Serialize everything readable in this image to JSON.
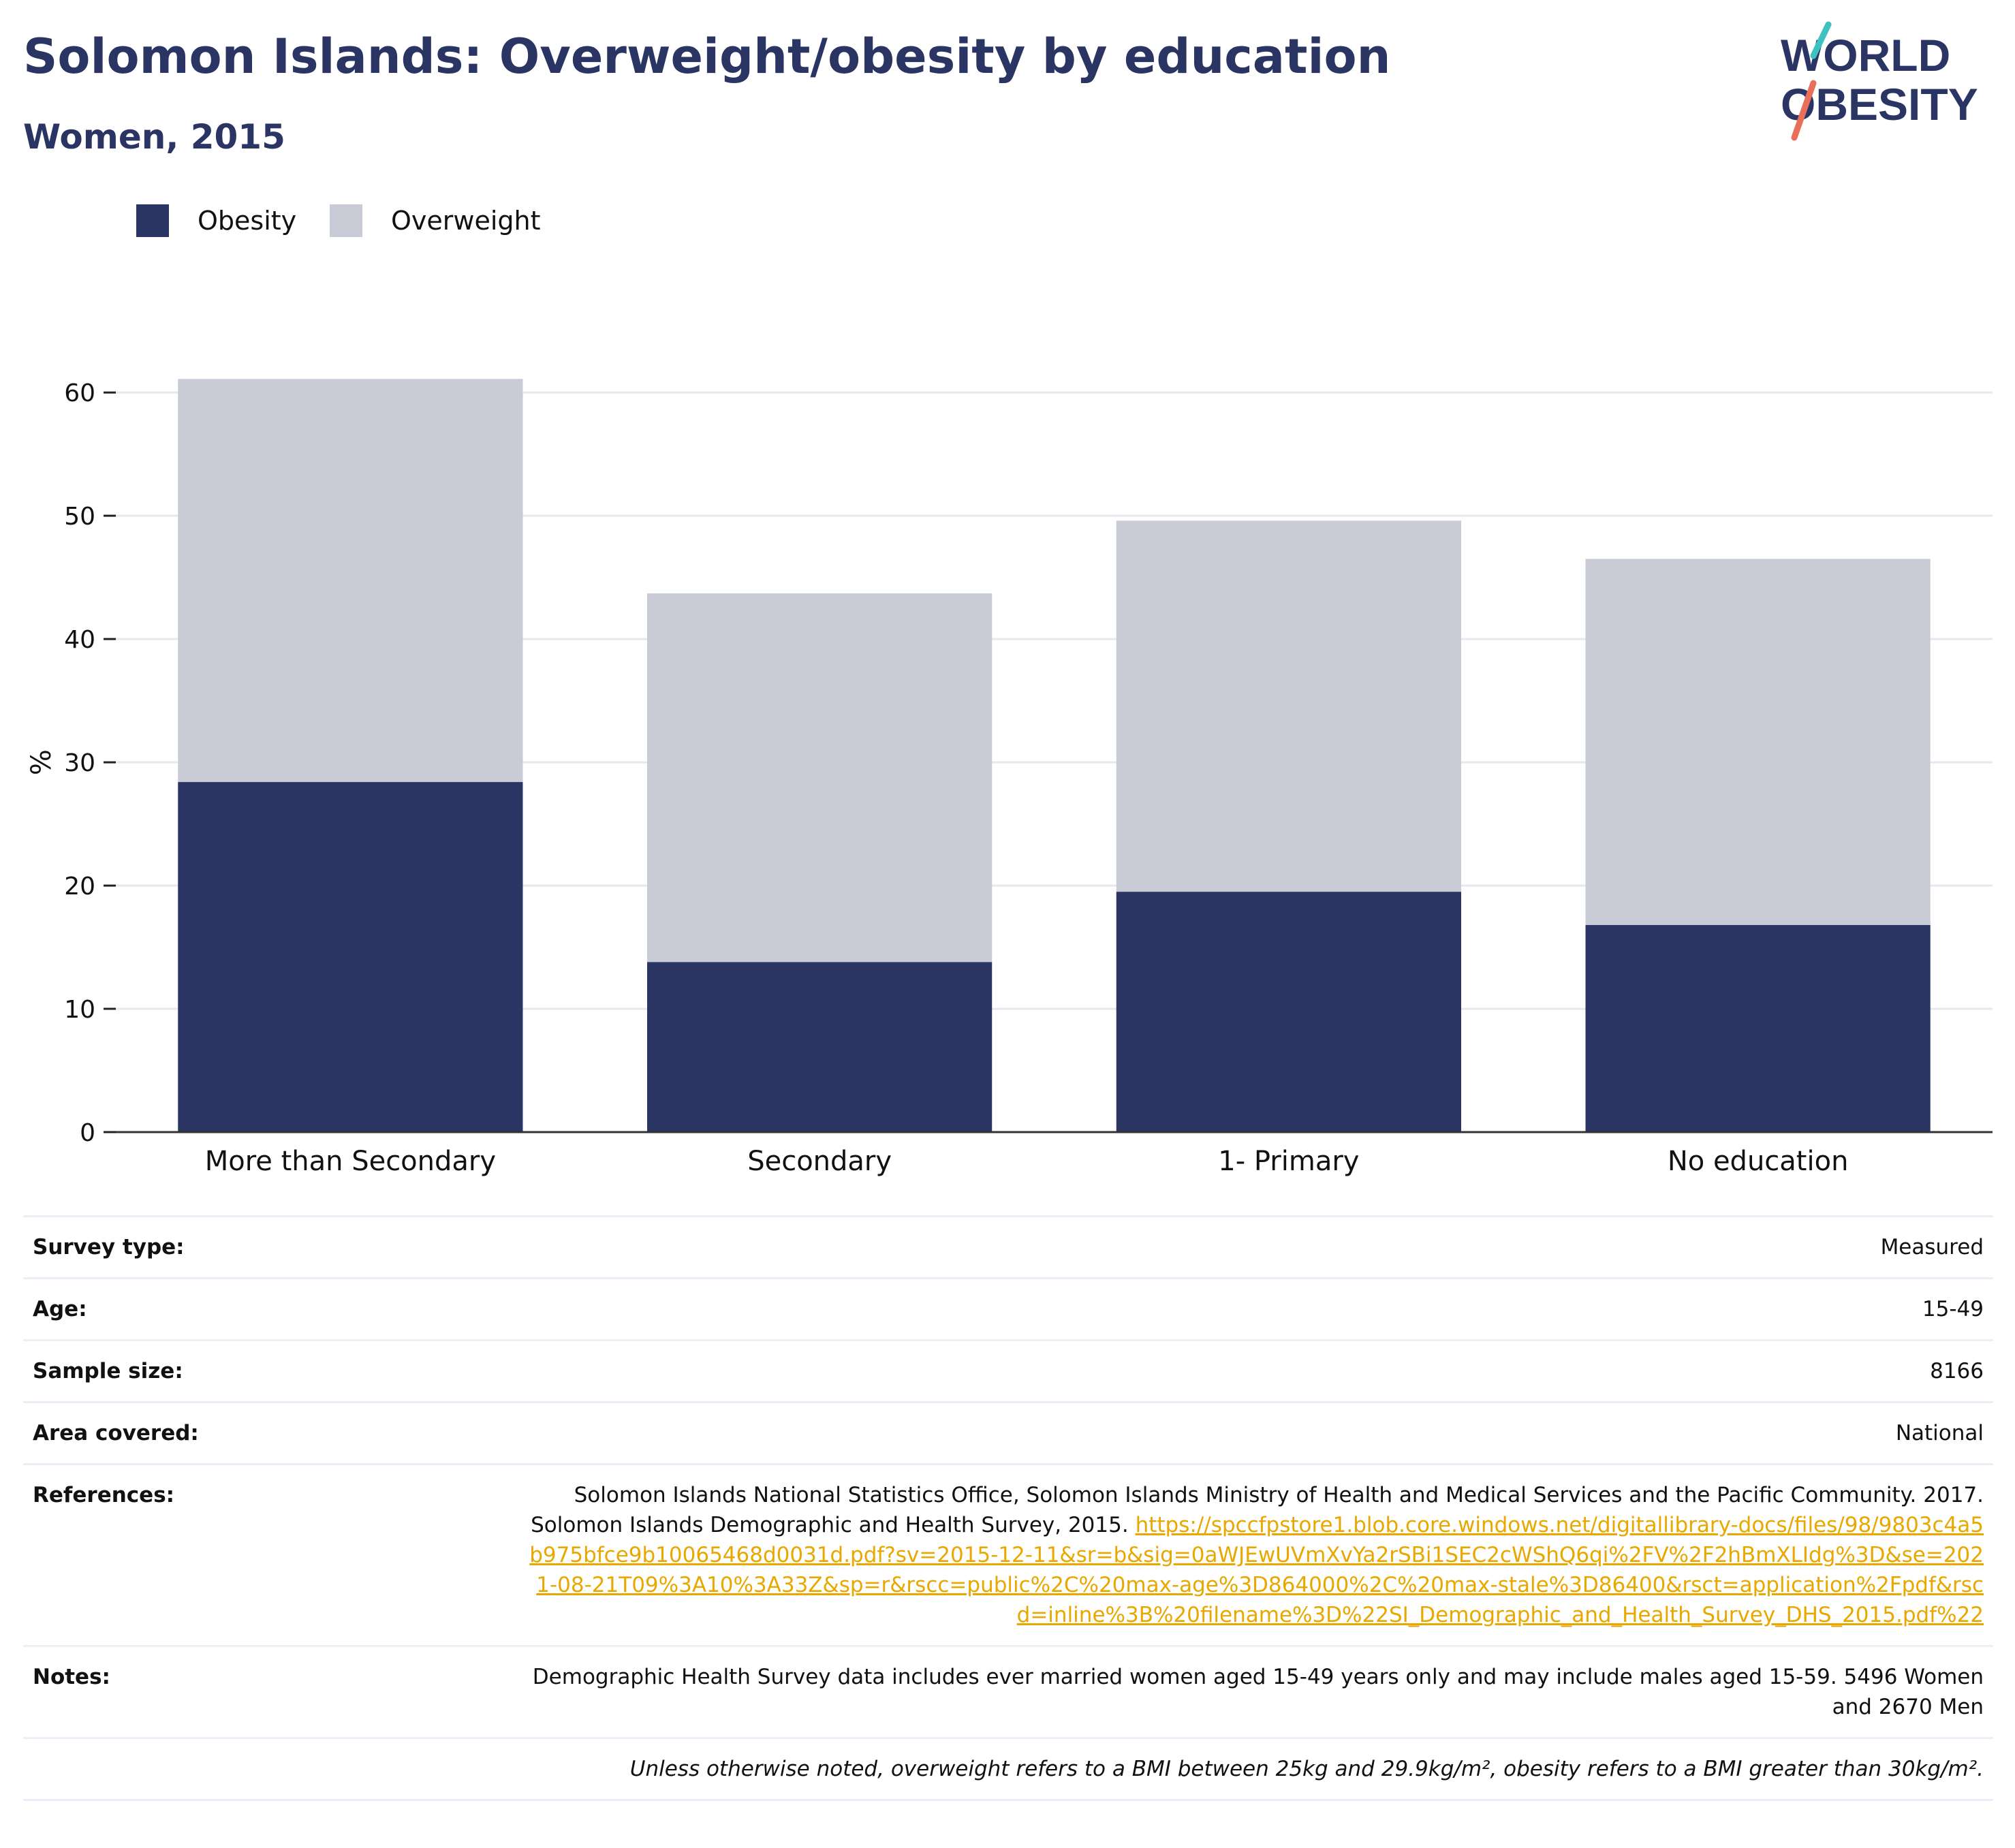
{
  "header": {
    "title": "Solomon Islands: Overweight/obesity by education",
    "subtitle": "Women, 2015"
  },
  "logo": {
    "line1": "WORLD",
    "line2": "OBESITY"
  },
  "colors": {
    "obesity": "#2b3563",
    "overweight": "#c9cbd6",
    "text_dark": "#2b3563",
    "link": "#e8a800",
    "logo_teal": "#3fc1c0",
    "logo_coral": "#e8705a"
  },
  "chart_data": {
    "type": "bar",
    "stacked": true,
    "categories": [
      "More than Secondary",
      "Secondary",
      "1- Primary",
      "No education"
    ],
    "series": [
      {
        "name": "Obesity",
        "values": [
          28.4,
          13.8,
          19.5,
          16.8
        ]
      },
      {
        "name": "Overweight",
        "values": [
          32.7,
          29.9,
          30.1,
          29.7
        ]
      }
    ],
    "ylabel": "%",
    "xlabel": "",
    "ylim": [
      0,
      62
    ],
    "yticks": [
      0,
      10,
      20,
      30,
      40,
      50,
      60
    ],
    "grid": true,
    "legend_position": "top-left"
  },
  "info": {
    "survey_type_label": "Survey type:",
    "survey_type_value": "Measured",
    "age_label": "Age:",
    "age_value": "15-49",
    "sample_size_label": "Sample size:",
    "sample_size_value": "8166",
    "area_label": "Area covered:",
    "area_value": "National",
    "references_label": "References:",
    "references_text": "Solomon Islands National Statistics Office, Solomon Islands Ministry of Health and Medical Services and the Pacific Community. 2017. Solomon Islands Demographic and Health Survey, 2015.",
    "references_link": "https://spccfpstore1.blob.core.windows.net/digitallibrary-docs/files/98/9803c4a5b975bfce9b10065468d0031d.pdf?sv=2015-12-11&sr=b&sig=0aWJEwUVmXvYa2rSBi1SEC2cWShQ6qi%2FV%2F2hBmXLIdg%3D&se=2021-08-21T09%3A10%3A33Z&sp=r&rscc=public%2C%20max-age%3D864000%2C%20max-stale%3D86400&rsct=application%2Fpdf&rscd=inline%3B%20filename%3D%22SI_Demographic_and_Health_Survey_DHS_2015.pdf%22",
    "notes_label": "Notes:",
    "notes_value": "Demographic Health Survey data includes ever married women aged 15-49 years only and may include males aged 15-59. 5496 Women and 2670 Men",
    "footnote": "Unless otherwise noted, overweight refers to a BMI between 25kg and 29.9kg/m², obesity refers to a BMI greater than 30kg/m²."
  }
}
